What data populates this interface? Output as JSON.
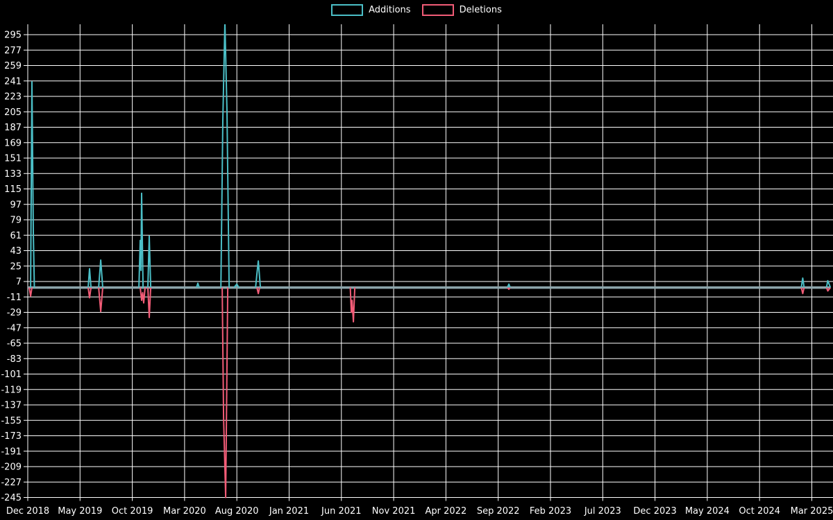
{
  "legend": {
    "items": [
      {
        "label": "Additions",
        "color": "#4BBFC7"
      },
      {
        "label": "Deletions",
        "color": "#F25C77"
      }
    ]
  },
  "chart_data": {
    "type": "line",
    "title": "",
    "xlabel": "",
    "ylabel": "",
    "background_color": "#000000",
    "grid": {
      "show": true,
      "color": "#ffffff"
    },
    "baseline": {
      "value": 0,
      "color": "#8CA5AB"
    },
    "legend_position": "top-center",
    "y_axis": {
      "max": 295,
      "min": -245,
      "step": 18,
      "ticks": [
        295,
        277,
        259,
        241,
        223,
        205,
        187,
        169,
        151,
        133,
        115,
        97,
        79,
        61,
        43,
        25,
        7,
        -11,
        -29,
        -47,
        -65,
        -83,
        -101,
        -119,
        -137,
        -155,
        -173,
        -191,
        -209,
        -227,
        -245
      ]
    },
    "x_axis": {
      "unit": "months since Dec 2018",
      "label_every_months": 5,
      "range_months": [
        0,
        77
      ],
      "labels": [
        "Dec 2018",
        "May 2019",
        "Oct 2019",
        "Mar 2020",
        "Aug 2020",
        "Jan 2021",
        "Jun 2021",
        "Nov 2021",
        "Apr 2022",
        "Sep 2022",
        "Feb 2023",
        "Jul 2023",
        "Dec 2023",
        "May 2024",
        "Oct 2024",
        "Mar 2025"
      ]
    },
    "series": [
      {
        "name": "Additions",
        "color": "#4BBFC7",
        "points": [
          [
            0,
            0
          ],
          [
            0.27,
            0
          ],
          [
            0.4,
            240
          ],
          [
            0.53,
            64
          ],
          [
            0.63,
            0
          ],
          [
            5.78,
            0
          ],
          [
            5.91,
            22
          ],
          [
            6.05,
            0
          ],
          [
            6.78,
            0
          ],
          [
            6.98,
            32
          ],
          [
            7.17,
            0
          ],
          [
            10.63,
            0
          ],
          [
            10.76,
            55
          ],
          [
            10.83,
            20
          ],
          [
            10.89,
            110
          ],
          [
            11.03,
            0
          ],
          [
            11.49,
            0
          ],
          [
            11.62,
            60
          ],
          [
            11.76,
            0
          ],
          [
            16.14,
            0
          ],
          [
            16.27,
            5
          ],
          [
            16.4,
            0
          ],
          [
            18.47,
            0
          ],
          [
            18.66,
            195
          ],
          [
            18.86,
            310
          ],
          [
            19.06,
            205
          ],
          [
            19.26,
            0
          ],
          [
            19.73,
            0
          ],
          [
            20.0,
            4
          ],
          [
            20.19,
            0
          ],
          [
            21.79,
            0
          ],
          [
            21.92,
            16
          ],
          [
            22.05,
            31
          ],
          [
            22.25,
            0
          ],
          [
            45.88,
            0
          ],
          [
            46.02,
            4
          ],
          [
            46.15,
            0
          ],
          [
            73.99,
            0
          ],
          [
            74.13,
            11
          ],
          [
            74.26,
            0
          ],
          [
            76.4,
            0
          ],
          [
            76.53,
            8
          ],
          [
            76.78,
            0
          ]
        ]
      },
      {
        "name": "Deletions",
        "color": "#F25C77",
        "points": [
          [
            0,
            0
          ],
          [
            0.13,
            0
          ],
          [
            0.27,
            -10
          ],
          [
            0.4,
            0
          ],
          [
            5.78,
            0
          ],
          [
            5.91,
            -12
          ],
          [
            6.05,
            0
          ],
          [
            6.78,
            0
          ],
          [
            6.98,
            -28
          ],
          [
            7.17,
            0
          ],
          [
            10.76,
            0
          ],
          [
            10.89,
            -15
          ],
          [
            10.99,
            -6
          ],
          [
            11.09,
            -18
          ],
          [
            11.22,
            0
          ],
          [
            11.49,
            0
          ],
          [
            11.62,
            -35
          ],
          [
            11.76,
            0
          ],
          [
            18.6,
            0
          ],
          [
            18.73,
            -152
          ],
          [
            18.93,
            -245
          ],
          [
            19.13,
            0
          ],
          [
            21.92,
            0
          ],
          [
            22.05,
            -7
          ],
          [
            22.18,
            0
          ],
          [
            30.85,
            0
          ],
          [
            30.95,
            -29
          ],
          [
            31.02,
            -15
          ],
          [
            31.15,
            -40
          ],
          [
            31.28,
            0
          ],
          [
            45.88,
            0
          ],
          [
            46.02,
            -2
          ],
          [
            46.15,
            0
          ],
          [
            73.99,
            0
          ],
          [
            74.13,
            -7
          ],
          [
            74.26,
            0
          ],
          [
            76.4,
            0
          ],
          [
            76.53,
            -4
          ],
          [
            76.78,
            0
          ]
        ]
      }
    ]
  }
}
